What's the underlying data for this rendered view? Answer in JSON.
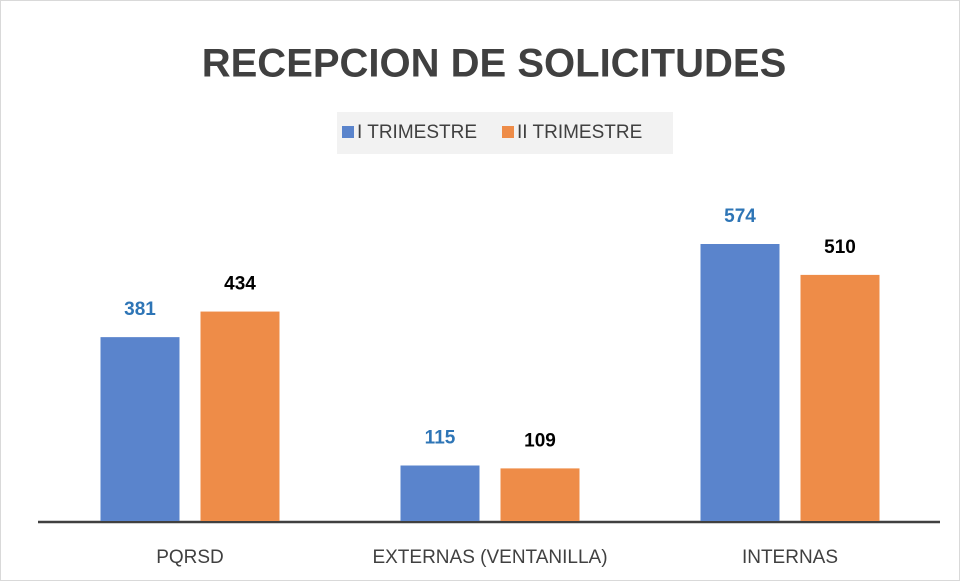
{
  "chart_data": {
    "type": "bar",
    "title": "RECEPCION DE SOLICITUDES",
    "categories": [
      "PQRSD",
      "EXTERNAS  (VENTANILLA)",
      "INTERNAS"
    ],
    "series": [
      {
        "name": "I TRIMESTRE",
        "color": "#5a84cc",
        "label_color": "#2e75b6",
        "values": [
          381,
          115,
          574
        ]
      },
      {
        "name": "II TRIMESTRE",
        "color": "#ee8c48",
        "label_color": "#000000",
        "values": [
          434,
          109,
          510
        ]
      }
    ]
  }
}
